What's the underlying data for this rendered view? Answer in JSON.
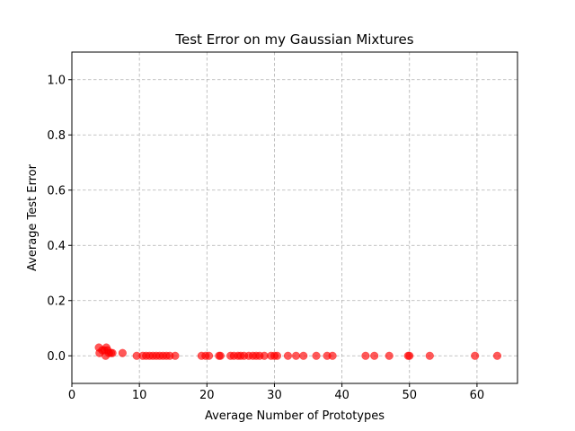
{
  "chart_data": {
    "type": "scatter",
    "title": "Test Error on my Gaussian Mixtures",
    "xlabel": "Average Number of Prototypes",
    "ylabel": "Average Test Error",
    "xlim": [
      0,
      66
    ],
    "ylim": [
      -0.1,
      1.1
    ],
    "xticks": [
      0,
      10,
      20,
      30,
      40,
      50,
      60
    ],
    "yticks": [
      0.0,
      0.2,
      0.4,
      0.6,
      0.8,
      1.0
    ],
    "xtick_labels": [
      "0",
      "10",
      "20",
      "30",
      "40",
      "50",
      "60"
    ],
    "ytick_labels": [
      "0.0",
      "0.2",
      "0.4",
      "0.6",
      "0.8",
      "1.0"
    ],
    "grid": true,
    "grid_style": "dashed",
    "marker_color": "#ff0000",
    "marker_alpha": 0.65,
    "series": [
      {
        "points": [
          [
            4.0,
            0.03
          ],
          [
            4.1,
            0.01
          ],
          [
            4.5,
            0.02
          ],
          [
            4.8,
            0.02
          ],
          [
            5.0,
            0.0
          ],
          [
            5.1,
            0.03
          ],
          [
            5.3,
            0.02
          ],
          [
            5.5,
            0.01
          ],
          [
            5.8,
            0.01
          ],
          [
            6.0,
            0.01
          ],
          [
            7.5,
            0.01
          ],
          [
            9.6,
            0.0
          ],
          [
            10.5,
            0.0
          ],
          [
            11.0,
            0.0
          ],
          [
            11.5,
            0.0
          ],
          [
            12.0,
            0.0
          ],
          [
            12.5,
            0.0
          ],
          [
            13.0,
            0.0
          ],
          [
            13.5,
            0.0
          ],
          [
            14.0,
            0.0
          ],
          [
            14.5,
            0.0
          ],
          [
            15.3,
            0.0
          ],
          [
            19.2,
            0.0
          ],
          [
            19.8,
            0.0
          ],
          [
            20.3,
            0.0
          ],
          [
            21.8,
            0.0
          ],
          [
            22.0,
            0.0
          ],
          [
            23.5,
            0.0
          ],
          [
            24.0,
            0.0
          ],
          [
            24.6,
            0.0
          ],
          [
            25.0,
            0.0
          ],
          [
            25.5,
            0.0
          ],
          [
            26.2,
            0.0
          ],
          [
            26.8,
            0.0
          ],
          [
            27.3,
            0.0
          ],
          [
            27.8,
            0.0
          ],
          [
            28.5,
            0.0
          ],
          [
            29.5,
            0.0
          ],
          [
            30.0,
            0.0
          ],
          [
            30.4,
            0.0
          ],
          [
            32.0,
            0.0
          ],
          [
            33.2,
            0.0
          ],
          [
            34.3,
            0.0
          ],
          [
            36.2,
            0.0
          ],
          [
            37.8,
            0.0
          ],
          [
            38.6,
            0.0
          ],
          [
            43.5,
            0.0
          ],
          [
            44.8,
            0.0
          ],
          [
            47.0,
            0.0
          ],
          [
            49.8,
            0.0
          ],
          [
            50.0,
            0.0
          ],
          [
            53.0,
            0.0
          ],
          [
            59.7,
            0.0
          ],
          [
            63.0,
            0.0
          ]
        ]
      }
    ]
  }
}
